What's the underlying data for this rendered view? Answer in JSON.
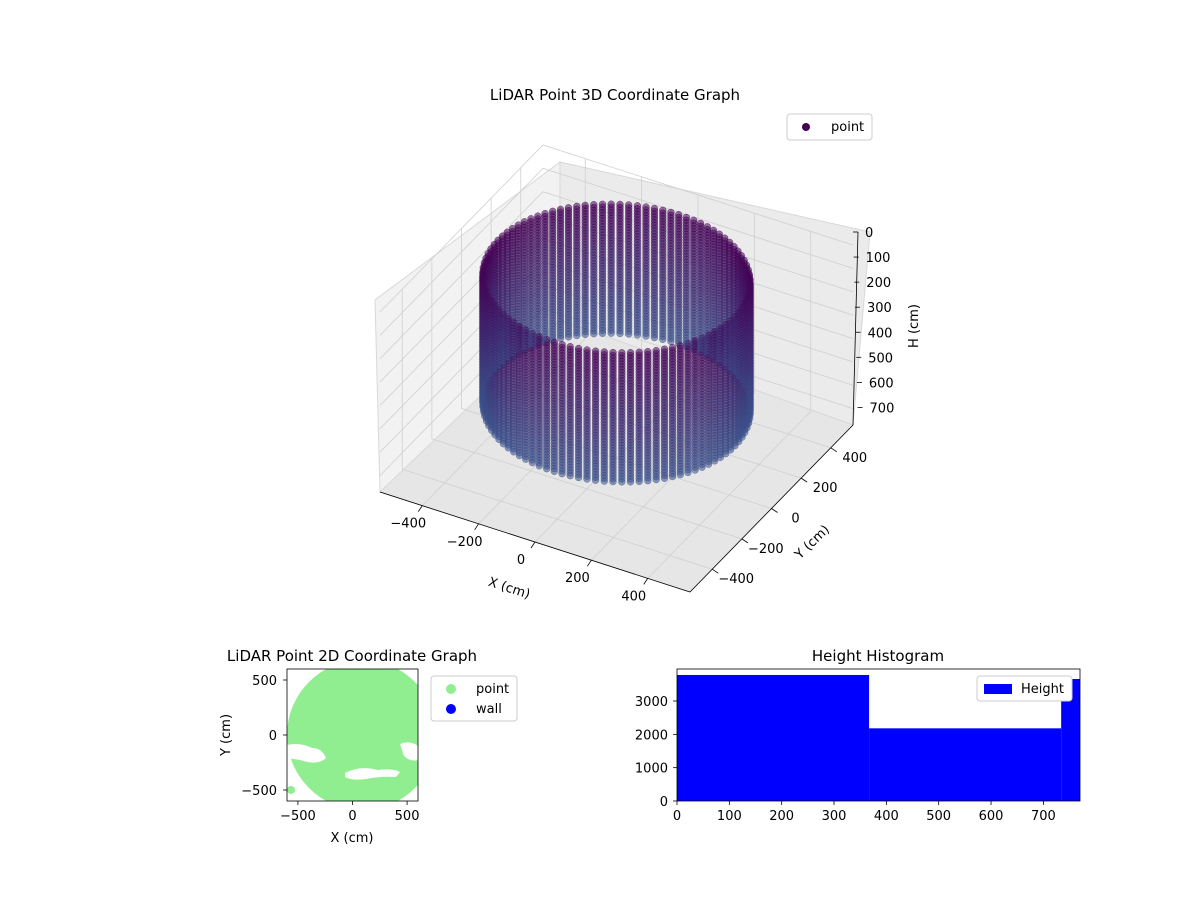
{
  "figure": {
    "charts": [
      {
        "title": "LiDAR Point 3D Coordinate Graph",
        "legend": {
          "label": "point",
          "color": "#440154"
        }
      },
      {
        "title": "LiDAR Point 2D Coordinate Graph",
        "legend": [
          {
            "label": "point",
            "color": "#90ee90"
          },
          {
            "label": "wall",
            "color": "#0000ff"
          }
        ]
      },
      {
        "title": "Height Histogram",
        "legend": {
          "label": "Height",
          "color": "#0000ff"
        }
      }
    ]
  },
  "chart_data": [
    {
      "type": "scatter",
      "subtype": "3d",
      "title": "LiDAR Point 3D Coordinate Graph",
      "xlabel": "X (cm)",
      "ylabel": "Y (cm)",
      "zlabel": "H (cm)",
      "x_ticks": [
        "−400",
        "−200",
        "0",
        "200",
        "400"
      ],
      "y_ticks": [
        "−400",
        "−200",
        "0",
        "200",
        "400"
      ],
      "z_ticks": [
        "0",
        "100",
        "200",
        "300",
        "400",
        "500",
        "600",
        "700"
      ],
      "xlim": [
        -550,
        550
      ],
      "ylim": [
        -550,
        550
      ],
      "zlim": [
        0,
        770
      ],
      "z_inverted": true,
      "series": [
        {
          "name": "point",
          "shape": "cylinder",
          "center": [
            0,
            0
          ],
          "radius": 420,
          "height_range": [
            0,
            560
          ],
          "color_top": "#440154",
          "color_bottom": "#3b528b"
        }
      ],
      "legend_position": "upper right",
      "grid": true
    },
    {
      "type": "scatter",
      "title": "LiDAR Point 2D Coordinate Graph",
      "xlabel": "X (cm)",
      "ylabel": "Y (cm)",
      "x_ticks": [
        "−500",
        "0",
        "500"
      ],
      "y_ticks": [
        "−500",
        "0",
        "500"
      ],
      "xlim": [
        -600,
        600
      ],
      "ylim": [
        -600,
        600
      ],
      "series": [
        {
          "name": "point",
          "color": "#90ee90",
          "description_region": {
            "center": [
              130,
              0
            ],
            "radius": 580
          }
        },
        {
          "name": "wall",
          "color": "#0000ff",
          "points": []
        }
      ],
      "legend_position": "outside right"
    },
    {
      "type": "bar",
      "subtype": "histogram",
      "title": "Height Histogram",
      "x_ticks": [
        "0",
        "100",
        "200",
        "300",
        "400",
        "500",
        "600",
        "700"
      ],
      "y_ticks": [
        "0",
        "1000",
        "2000",
        "3000"
      ],
      "xlim": [
        0,
        770
      ],
      "ylim": [
        0,
        3960
      ],
      "bins": [
        {
          "start": 0,
          "end": 367,
          "count": 3780
        },
        {
          "start": 367,
          "end": 734,
          "count": 2180
        },
        {
          "start": 734,
          "end": 770,
          "count": 3660
        }
      ],
      "series": [
        {
          "name": "Height",
          "color": "#0000ff"
        }
      ],
      "legend_position": "upper right"
    }
  ]
}
